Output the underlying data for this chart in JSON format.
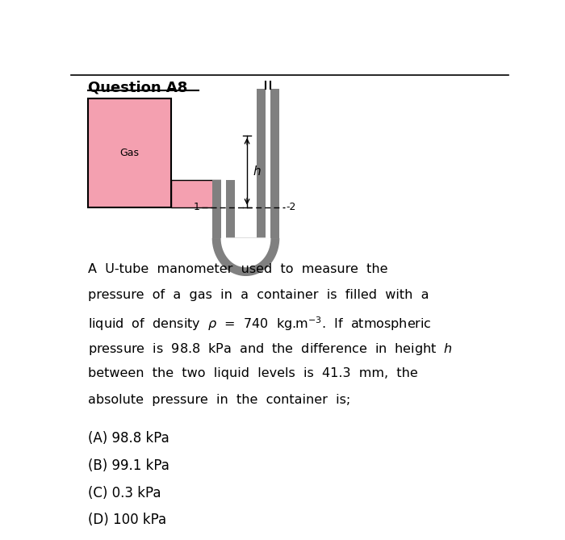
{
  "title": "Question A8",
  "background_color": "#ffffff",
  "fig_width": 7.0,
  "fig_height": 6.69,
  "dpi": 100,
  "gas_box_color": "#f4a0b0",
  "gray_color": "#808080",
  "gas_label": "Gas",
  "options": [
    "(A) 98.8 kPa",
    "(B) 99.1 kPa",
    "(C) 0.3 kPa",
    "(D) 100 kPa"
  ],
  "option_fontsize": 12,
  "body_fontsize": 11.5,
  "title_fontsize": 13,
  "h_label": "h",
  "label1": "1",
  "label2": "-2"
}
